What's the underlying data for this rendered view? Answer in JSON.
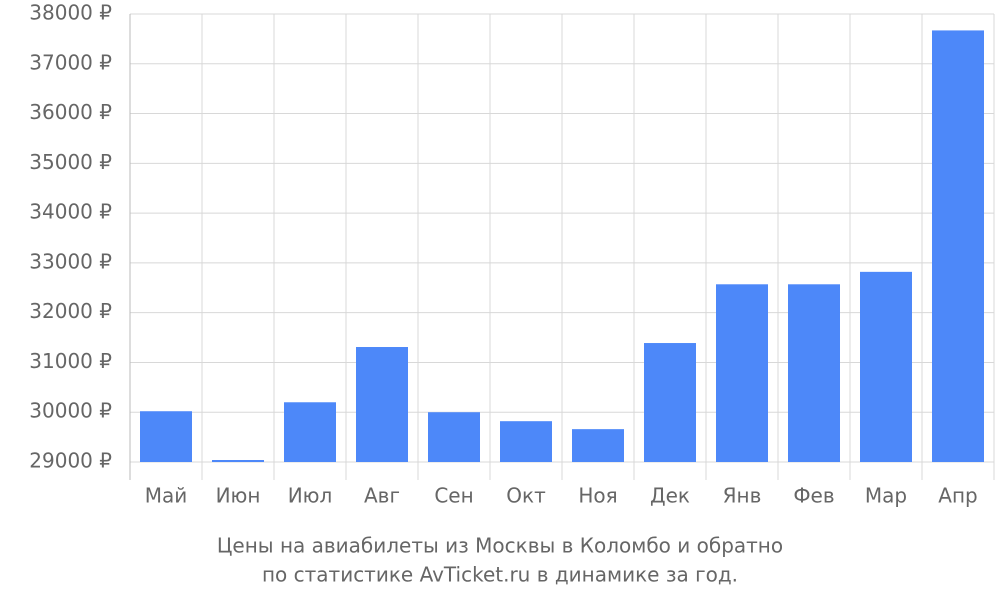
{
  "chart_data": {
    "type": "bar",
    "title": [
      "Цены на авиабилеты из Москвы в Коломбо и обратно",
      "по статистике AvTicket.ru в динамике за год."
    ],
    "categories": [
      "Май",
      "Июн",
      "Июл",
      "Авг",
      "Сен",
      "Окт",
      "Ноя",
      "Дек",
      "Янв",
      "Фев",
      "Мар",
      "Апр"
    ],
    "values": [
      30020,
      29040,
      30200,
      31310,
      30000,
      29820,
      29660,
      31390,
      32570,
      32570,
      32820,
      37670
    ],
    "color": "#4d88f9",
    "ylim": [
      29000,
      38000
    ],
    "yticks": [
      {
        "value": 29000,
        "label": "29000 ₽"
      },
      {
        "value": 30000,
        "label": "30000 ₽"
      },
      {
        "value": 31000,
        "label": "31000 ₽"
      },
      {
        "value": 32000,
        "label": "32000 ₽"
      },
      {
        "value": 33000,
        "label": "33000 ₽"
      },
      {
        "value": 34000,
        "label": "34000 ₽"
      },
      {
        "value": 35000,
        "label": "35000 ₽"
      },
      {
        "value": 36000,
        "label": "36000 ₽"
      },
      {
        "value": 37000,
        "label": "37000 ₽"
      },
      {
        "value": 38000,
        "label": "38000 ₽"
      }
    ],
    "grid": true
  }
}
